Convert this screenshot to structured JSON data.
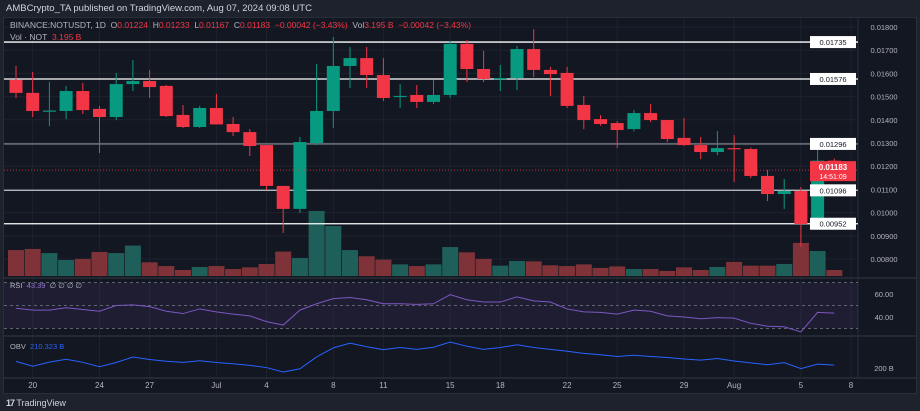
{
  "header": {
    "published": "AMBCrypto_TA published on TradingView.com, Aug 07, 2024 09:08 UTC"
  },
  "legend": {
    "symbol": "BINANCE:NOTUSDT, 1D",
    "o_label": "O",
    "o": "0.01224",
    "h_label": "H",
    "h": "0.01233",
    "l_label": "L",
    "l": "0.01167",
    "c_label": "C",
    "c": "0.01183",
    "change": "−0.00042 (−3.43%)",
    "vol_label": "Vol",
    "vol": "3.195 B",
    "vol_change": "−0.00042 (−3.43%)",
    "vol_row_label": "Vol · NOT",
    "vol_row_value": "3.195 B"
  },
  "rsi_legend": {
    "label": "RSI",
    "value": "43.39",
    "extra": "∅ ∅ ∅ ∅"
  },
  "obv_legend": {
    "label": "OBV",
    "value": "210.323 B"
  },
  "footer": {
    "logo_glyph": "17",
    "brand": "TradingView"
  },
  "colors": {
    "up": "#089981",
    "down": "#f23645",
    "vol_up": "#1f5f5a",
    "vol_down": "#7f3338",
    "rsi": "#7e57c2",
    "obv": "#2962ff",
    "background": "#131722"
  },
  "chart_data": {
    "type": "candlestick",
    "symbol": "NOTUSDT",
    "interval": "1D",
    "ylim": [
      0.0077,
      0.0182
    ],
    "y_ticks": [
      "0.01800",
      "0.01700",
      "0.01600",
      "0.01500",
      "0.01400",
      "0.01300",
      "0.01200",
      "0.01100",
      "0.01000",
      "0.00900",
      "0.00800"
    ],
    "horizontal_levels": [
      {
        "price": 0.01735,
        "label": "0.01735",
        "color": "#ffffff"
      },
      {
        "price": 0.01576,
        "label": "0.01576",
        "color": "#ffffff"
      },
      {
        "price": 0.01296,
        "label": "0.01296",
        "color": "#787b86"
      },
      {
        "price": 0.01096,
        "label": "0.01096",
        "color": "#b2b5be"
      },
      {
        "price": 0.00952,
        "label": "0.00952",
        "color": "#ffffff"
      }
    ],
    "last_price": {
      "price": 0.01183,
      "label": "0.01183",
      "countdown": "14:51:09"
    },
    "x_ticks": [
      {
        "label": "20",
        "date": "2024-06-20"
      },
      {
        "label": "24",
        "date": "2024-06-24"
      },
      {
        "label": "27",
        "date": "2024-06-27"
      },
      {
        "label": "Jul",
        "date": "2024-07-01"
      },
      {
        "label": "4",
        "date": "2024-07-04"
      },
      {
        "label": "8",
        "date": "2024-07-08"
      },
      {
        "label": "11",
        "date": "2024-07-11"
      },
      {
        "label": "15",
        "date": "2024-07-15"
      },
      {
        "label": "18",
        "date": "2024-07-18"
      },
      {
        "label": "22",
        "date": "2024-07-22"
      },
      {
        "label": "25",
        "date": "2024-07-25"
      },
      {
        "label": "29",
        "date": "2024-07-29"
      },
      {
        "label": "Aug",
        "date": "2024-08-01"
      },
      {
        "label": "5",
        "date": "2024-08-05"
      },
      {
        "label": "8",
        "date": "2024-08-08"
      }
    ],
    "candle_fields": [
      "date",
      "open",
      "high",
      "low",
      "close",
      "volume_B"
    ],
    "candles": [
      [
        "2024-06-19",
        0.01572,
        0.01632,
        0.01494,
        0.01516,
        13.8
      ],
      [
        "2024-06-20",
        0.01516,
        0.01606,
        0.01412,
        0.01438,
        14.4
      ],
      [
        "2024-06-21",
        0.01438,
        0.01563,
        0.01373,
        0.0144,
        12.2
      ],
      [
        "2024-06-22",
        0.01438,
        0.01546,
        0.01403,
        0.01524,
        8.5
      ],
      [
        "2024-06-23",
        0.01524,
        0.01559,
        0.01425,
        0.01442,
        9.1
      ],
      [
        "2024-06-24",
        0.01447,
        0.0146,
        0.01257,
        0.01412,
        12.8
      ],
      [
        "2024-06-25",
        0.01412,
        0.01602,
        0.01399,
        0.01554,
        12.2
      ],
      [
        "2024-06-26",
        0.01554,
        0.01658,
        0.01524,
        0.01567,
        16.2
      ],
      [
        "2024-06-27",
        0.01567,
        0.01615,
        0.01494,
        0.01541,
        7.3
      ],
      [
        "2024-06-28",
        0.01546,
        0.0155,
        0.01412,
        0.01416,
        5.3
      ],
      [
        "2024-06-29",
        0.01421,
        0.01464,
        0.01365,
        0.01369,
        3.2
      ],
      [
        "2024-06-30",
        0.01369,
        0.0146,
        0.01365,
        0.01451,
        4.8
      ],
      [
        "2024-07-01",
        0.01451,
        0.01511,
        0.0138,
        0.0138,
        5.3
      ],
      [
        "2024-07-02",
        0.01382,
        0.01412,
        0.0133,
        0.01347,
        3.7
      ],
      [
        "2024-07-03",
        0.01347,
        0.0136,
        0.01244,
        0.01287,
        4.6
      ],
      [
        "2024-07-04",
        0.01291,
        0.01291,
        0.01097,
        0.01115,
        6.4
      ],
      [
        "2024-07-05",
        0.01115,
        0.01115,
        0.00912,
        0.01016,
        13.0
      ],
      [
        "2024-07-06",
        0.01016,
        0.01326,
        0.00998,
        0.01304,
        9.6
      ],
      [
        "2024-07-07",
        0.013,
        0.0164,
        0.01291,
        0.01438,
        34.6
      ],
      [
        "2024-07-08",
        0.01438,
        0.01757,
        0.01365,
        0.01632,
        26.6
      ],
      [
        "2024-07-09",
        0.01632,
        0.01714,
        0.01537,
        0.01666,
        13.8
      ],
      [
        "2024-07-10",
        0.01666,
        0.01714,
        0.01537,
        0.01593,
        10.5
      ],
      [
        "2024-07-11",
        0.01593,
        0.01666,
        0.01481,
        0.01494,
        8.7
      ],
      [
        "2024-07-12",
        0.015,
        0.01554,
        0.01451,
        0.01503,
        6.2
      ],
      [
        "2024-07-13",
        0.01507,
        0.0155,
        0.01451,
        0.01477,
        5.3
      ],
      [
        "2024-07-14",
        0.01477,
        0.01572,
        0.01468,
        0.01507,
        6.2
      ],
      [
        "2024-07-15",
        0.01507,
        0.0174,
        0.01494,
        0.01727,
        15.4
      ],
      [
        "2024-07-16",
        0.01727,
        0.01744,
        0.01563,
        0.01619,
        12.6
      ],
      [
        "2024-07-17",
        0.01619,
        0.01697,
        0.01563,
        0.01576,
        9.1
      ],
      [
        "2024-07-18",
        0.01576,
        0.01636,
        0.01524,
        0.0158,
        5.5
      ],
      [
        "2024-07-19",
        0.0158,
        0.01718,
        0.01528,
        0.01705,
        8.0
      ],
      [
        "2024-07-20",
        0.01705,
        0.01791,
        0.01584,
        0.01615,
        7.8
      ],
      [
        "2024-07-21",
        0.01615,
        0.01628,
        0.01503,
        0.01597,
        5.7
      ],
      [
        "2024-07-22",
        0.01602,
        0.01628,
        0.01451,
        0.0146,
        5.3
      ],
      [
        "2024-07-23",
        0.01464,
        0.01503,
        0.0136,
        0.01399,
        6.2
      ],
      [
        "2024-07-24",
        0.01403,
        0.0142,
        0.01375,
        0.01382,
        4.3
      ],
      [
        "2024-07-25",
        0.01386,
        0.01395,
        0.01278,
        0.01356,
        5.1
      ],
      [
        "2024-07-26",
        0.0136,
        0.01442,
        0.0135,
        0.01429,
        3.7
      ],
      [
        "2024-07-27",
        0.01429,
        0.01468,
        0.0139,
        0.01399,
        3.7
      ],
      [
        "2024-07-28",
        0.01399,
        0.01399,
        0.01304,
        0.01317,
        2.7
      ],
      [
        "2024-07-29",
        0.01322,
        0.01408,
        0.01287,
        0.01291,
        4.6
      ],
      [
        "2024-07-30",
        0.01291,
        0.01326,
        0.01231,
        0.01261,
        3.2
      ],
      [
        "2024-07-31",
        0.01261,
        0.01352,
        0.01248,
        0.01278,
        4.8
      ],
      [
        "2024-08-01",
        0.01278,
        0.01334,
        0.01132,
        0.01274,
        7.5
      ],
      [
        "2024-08-02",
        0.01274,
        0.0128,
        0.01149,
        0.01158,
        5.5
      ],
      [
        "2024-08-03",
        0.01158,
        0.01184,
        0.0105,
        0.0108,
        5.5
      ],
      [
        "2024-08-04",
        0.0108,
        0.01145,
        0.01016,
        0.01093,
        6.4
      ],
      [
        "2024-08-05",
        0.01093,
        0.0111,
        0.00852,
        0.00951,
        17.6
      ],
      [
        "2024-08-06",
        0.00951,
        0.0127,
        0.00951,
        0.01224,
        13.3
      ],
      [
        "2024-08-07",
        0.01224,
        0.01233,
        0.01167,
        0.01183,
        3.195
      ]
    ],
    "rsi": {
      "ticks": [
        "60.00",
        "40.00"
      ],
      "levels": [
        70,
        50,
        30
      ],
      "values": [
        47.6,
        46,
        46,
        48,
        46.5,
        45,
        50,
        50.5,
        49,
        45,
        43,
        47,
        44.5,
        42.5,
        41,
        36,
        33,
        46,
        51.5,
        56,
        57,
        55,
        51.5,
        51.5,
        51,
        51.5,
        59.4,
        55,
        53,
        53,
        57.5,
        54,
        53,
        47,
        44.5,
        44,
        42.5,
        46,
        45,
        41,
        40,
        38.5,
        39.5,
        39,
        34.5,
        32,
        31.5,
        27,
        44,
        43.39
      ]
    },
    "obv": {
      "last_B": 210.323,
      "tick": "200 B"
    }
  }
}
